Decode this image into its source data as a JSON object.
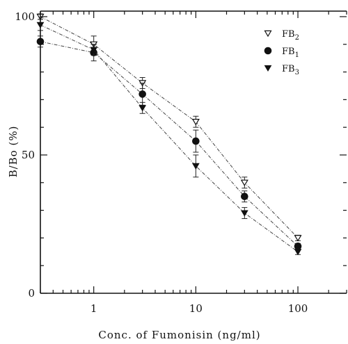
{
  "chart_data": {
    "type": "scatter",
    "xlabel": "Conc. of Fumonisin (ng/ml)",
    "ylabel": "B/Bo (%)",
    "x_scale": "log",
    "xlim": [
      0.3,
      300
    ],
    "ylim": [
      0,
      102
    ],
    "x_ticks": [
      1,
      10,
      100
    ],
    "x_tick_labels": [
      "1",
      "10",
      "100"
    ],
    "y_ticks": [
      0,
      50,
      100
    ],
    "y_tick_labels": [
      "0",
      "50",
      "100"
    ],
    "legend_position": "top-right",
    "series": [
      {
        "name": "FB2",
        "marker": "triangle-down-open",
        "x": [
          0.3,
          1,
          3,
          10,
          30,
          100
        ],
        "y": [
          100,
          90,
          76,
          62,
          40,
          20
        ],
        "err": [
          1,
          3,
          2,
          2,
          2,
          1
        ]
      },
      {
        "name": "FB1",
        "marker": "circle-filled",
        "x": [
          0.3,
          1,
          3,
          10,
          30,
          100
        ],
        "y": [
          91,
          87,
          72,
          55,
          35,
          17
        ],
        "err": [
          2,
          3,
          4,
          4,
          2,
          1
        ]
      },
      {
        "name": "FB3",
        "marker": "triangle-down-filled",
        "x": [
          0.3,
          1,
          3,
          10,
          30,
          100
        ],
        "y": [
          97,
          88,
          67,
          46,
          29,
          15
        ],
        "err": [
          2,
          2,
          2,
          4,
          2,
          1
        ]
      }
    ]
  }
}
